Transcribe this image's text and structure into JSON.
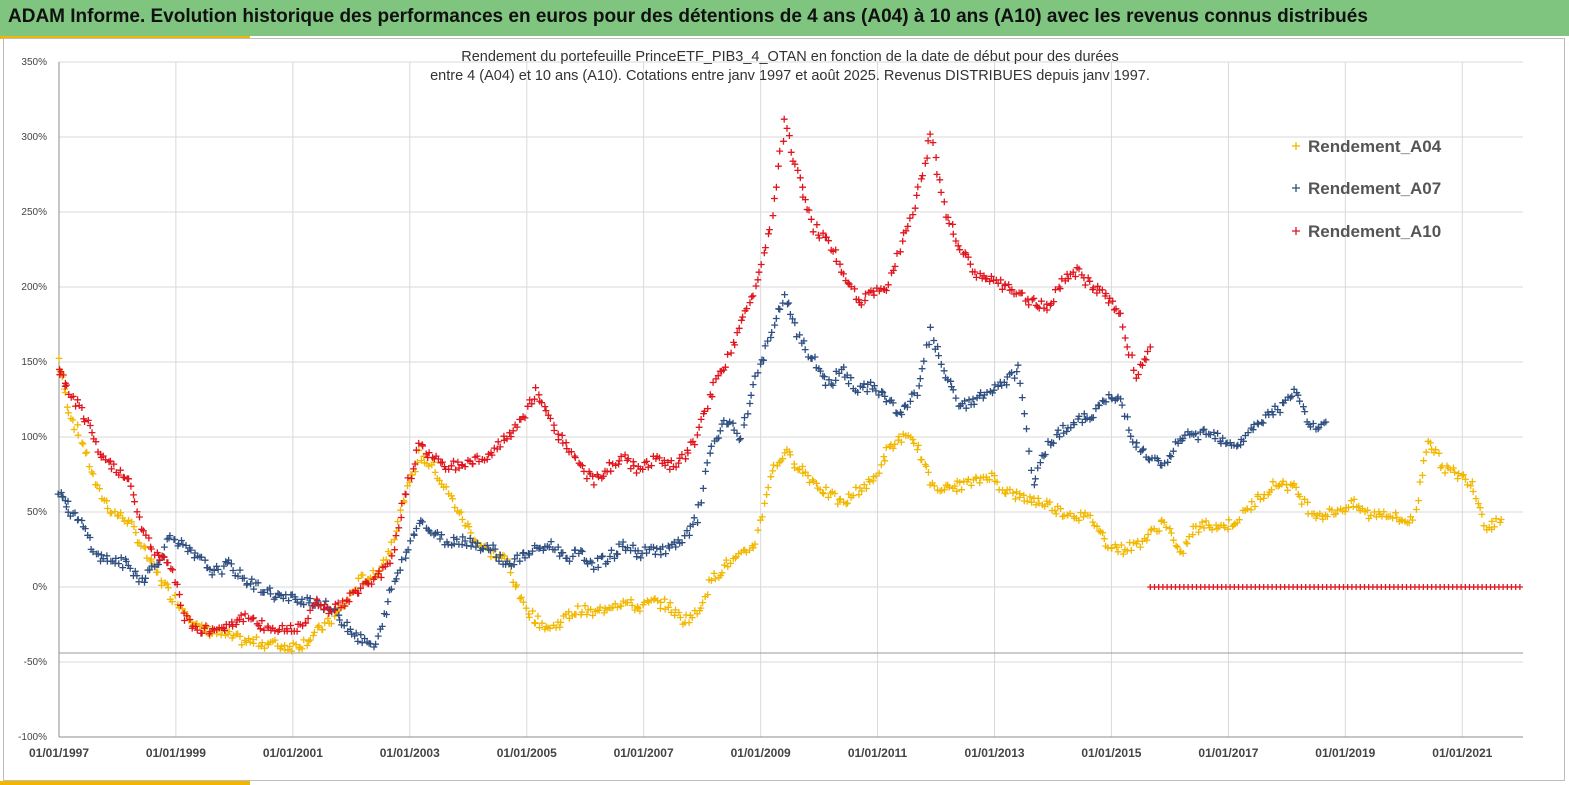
{
  "banner": {
    "title": "ADAM Informe. Evolution historique des performances en euros pour des détentions de 4 ans (A04) à 10 ans (A10) avec les revenus connus distribués"
  },
  "chart_data": {
    "type": "scatter",
    "title_line1": "Rendement du portefeuille PrinceETF_PIB3_4_OTAN  en fonction de la date de début pour des durées",
    "title_line2": "entre 4 (A04) et 10 ans (A10). Cotations entre janv 1997 et août 2025. Revenus DISTRIBUES depuis janv 1997.",
    "xlabel": "",
    "ylabel": "",
    "ylim": [
      -100,
      350
    ],
    "xlim": [
      "1997-01-01",
      "2022-01-15"
    ],
    "y_ticks": [
      "350%",
      "300%",
      "250%",
      "200%",
      "150%",
      "100%",
      "50%",
      "0%",
      "-50%",
      "-100%"
    ],
    "x_ticks": [
      "01/01/1997",
      "01/01/1999",
      "01/01/2001",
      "01/01/2003",
      "01/01/2005",
      "01/01/2007",
      "01/01/2009",
      "01/01/2011",
      "01/01/2013",
      "01/01/2015",
      "01/01/2017",
      "01/01/2019",
      "01/01/2021"
    ],
    "reference_line_y": -44,
    "grid": true,
    "legend_position": "top-right",
    "marker": "+",
    "series": [
      {
        "name": "Rendement_A04",
        "color": "#f2b800",
        "points": [
          [
            "1997-01-01",
            152
          ],
          [
            "1997-03-01",
            118
          ],
          [
            "1997-06-01",
            95
          ],
          [
            "1997-09-01",
            65
          ],
          [
            "1997-12-01",
            50
          ],
          [
            "1998-03-01",
            45
          ],
          [
            "1998-06-01",
            28
          ],
          [
            "1998-09-01",
            10
          ],
          [
            "1998-12-01",
            -5
          ],
          [
            "1999-03-01",
            -15
          ],
          [
            "1999-06-01",
            -28
          ],
          [
            "1999-09-01",
            -30
          ],
          [
            "1999-12-01",
            -33
          ],
          [
            "2000-03-01",
            -36
          ],
          [
            "2000-06-01",
            -37
          ],
          [
            "2000-09-01",
            -38
          ],
          [
            "2000-12-01",
            -40
          ],
          [
            "2001-03-01",
            -38
          ],
          [
            "2001-06-01",
            -30
          ],
          [
            "2001-09-01",
            -22
          ],
          [
            "2001-12-01",
            -10
          ],
          [
            "2002-03-01",
            5
          ],
          [
            "2002-06-01",
            8
          ],
          [
            "2002-09-01",
            25
          ],
          [
            "2002-12-01",
            60
          ],
          [
            "2003-03-01",
            88
          ],
          [
            "2003-06-01",
            80
          ],
          [
            "2003-09-01",
            62
          ],
          [
            "2003-12-01",
            45
          ],
          [
            "2004-03-01",
            30
          ],
          [
            "2004-06-01",
            22
          ],
          [
            "2004-09-01",
            18
          ],
          [
            "2004-12-01",
            -10
          ],
          [
            "2005-03-01",
            -22
          ],
          [
            "2005-06-01",
            -28
          ],
          [
            "2005-09-01",
            -20
          ],
          [
            "2005-12-01",
            -15
          ],
          [
            "2006-03-01",
            -18
          ],
          [
            "2006-06-01",
            -12
          ],
          [
            "2006-09-01",
            -10
          ],
          [
            "2006-12-01",
            -14
          ],
          [
            "2007-03-01",
            -10
          ],
          [
            "2007-06-01",
            -12
          ],
          [
            "2007-09-01",
            -22
          ],
          [
            "2007-12-01",
            -18
          ],
          [
            "2008-03-01",
            5
          ],
          [
            "2008-06-01",
            15
          ],
          [
            "2008-09-01",
            20
          ],
          [
            "2008-12-01",
            30
          ],
          [
            "2009-03-01",
            75
          ],
          [
            "2009-06-01",
            90
          ],
          [
            "2009-09-01",
            80
          ],
          [
            "2009-12-01",
            70
          ],
          [
            "2010-03-01",
            62
          ],
          [
            "2010-06-01",
            55
          ],
          [
            "2010-09-01",
            65
          ],
          [
            "2010-12-01",
            70
          ],
          [
            "2011-03-01",
            90
          ],
          [
            "2011-06-01",
            100
          ],
          [
            "2011-09-01",
            95
          ],
          [
            "2011-12-01",
            70
          ],
          [
            "2012-03-01",
            65
          ],
          [
            "2012-06-01",
            68
          ],
          [
            "2012-09-01",
            70
          ],
          [
            "2012-12-01",
            75
          ],
          [
            "2013-03-01",
            65
          ],
          [
            "2013-06-01",
            60
          ],
          [
            "2013-09-01",
            58
          ],
          [
            "2013-12-01",
            55
          ],
          [
            "2014-03-01",
            50
          ],
          [
            "2014-06-01",
            48
          ],
          [
            "2014-09-01",
            45
          ],
          [
            "2014-12-01",
            30
          ],
          [
            "2015-03-01",
            25
          ],
          [
            "2015-06-01",
            28
          ],
          [
            "2015-09-01",
            35
          ],
          [
            "2015-12-01",
            45
          ],
          [
            "2016-03-01",
            20
          ],
          [
            "2016-06-01",
            38
          ],
          [
            "2016-09-01",
            42
          ],
          [
            "2016-12-01",
            40
          ],
          [
            "2017-03-01",
            45
          ],
          [
            "2017-06-01",
            55
          ],
          [
            "2017-09-01",
            65
          ],
          [
            "2017-12-01",
            70
          ],
          [
            "2018-03-01",
            65
          ],
          [
            "2018-06-01",
            50
          ],
          [
            "2018-09-01",
            48
          ],
          [
            "2018-12-01",
            52
          ],
          [
            "2019-03-01",
            55
          ],
          [
            "2019-06-01",
            48
          ],
          [
            "2019-09-01",
            50
          ],
          [
            "2019-12-01",
            45
          ],
          [
            "2020-03-01",
            44
          ],
          [
            "2020-06-01",
            100
          ],
          [
            "2020-09-01",
            80
          ],
          [
            "2020-12-01",
            75
          ],
          [
            "2021-03-01",
            70
          ],
          [
            "2021-06-01",
            40
          ],
          [
            "2021-09-01",
            45
          ]
        ]
      },
      {
        "name": "Rendement_A07",
        "color": "#2f4f80",
        "points": [
          [
            "1997-01-01",
            65
          ],
          [
            "1997-03-01",
            52
          ],
          [
            "1997-06-01",
            40
          ],
          [
            "1997-09-01",
            20
          ],
          [
            "1997-12-01",
            18
          ],
          [
            "1998-03-01",
            15
          ],
          [
            "1998-06-01",
            5
          ],
          [
            "1998-09-01",
            15
          ],
          [
            "1998-12-01",
            35
          ],
          [
            "1999-03-01",
            25
          ],
          [
            "1999-06-01",
            18
          ],
          [
            "1999-09-01",
            10
          ],
          [
            "1999-12-01",
            15
          ],
          [
            "2000-03-01",
            5
          ],
          [
            "2000-06-01",
            0
          ],
          [
            "2000-09-01",
            -5
          ],
          [
            "2000-12-01",
            -8
          ],
          [
            "2001-03-01",
            -8
          ],
          [
            "2001-06-01",
            -10
          ],
          [
            "2001-09-01",
            -15
          ],
          [
            "2001-12-01",
            -25
          ],
          [
            "2002-03-01",
            -35
          ],
          [
            "2002-06-01",
            -40
          ],
          [
            "2002-09-01",
            -5
          ],
          [
            "2002-12-01",
            20
          ],
          [
            "2003-03-01",
            45
          ],
          [
            "2003-06-01",
            35
          ],
          [
            "2003-09-01",
            30
          ],
          [
            "2003-12-01",
            32
          ],
          [
            "2004-03-01",
            28
          ],
          [
            "2004-06-01",
            25
          ],
          [
            "2004-09-01",
            15
          ],
          [
            "2004-12-01",
            20
          ],
          [
            "2005-03-01",
            25
          ],
          [
            "2005-06-01",
            28
          ],
          [
            "2005-09-01",
            20
          ],
          [
            "2005-12-01",
            22
          ],
          [
            "2006-03-01",
            15
          ],
          [
            "2006-06-01",
            20
          ],
          [
            "2006-09-01",
            28
          ],
          [
            "2006-12-01",
            22
          ],
          [
            "2007-03-01",
            25
          ],
          [
            "2007-06-01",
            25
          ],
          [
            "2007-09-01",
            30
          ],
          [
            "2007-12-01",
            45
          ],
          [
            "2008-03-01",
            95
          ],
          [
            "2008-06-01",
            110
          ],
          [
            "2008-09-01",
            100
          ],
          [
            "2008-12-01",
            140
          ],
          [
            "2009-03-01",
            165
          ],
          [
            "2009-06-01",
            195
          ],
          [
            "2009-09-01",
            165
          ],
          [
            "2009-12-01",
            150
          ],
          [
            "2010-03-01",
            135
          ],
          [
            "2010-06-01",
            145
          ],
          [
            "2010-09-01",
            130
          ],
          [
            "2010-12-01",
            135
          ],
          [
            "2011-03-01",
            125
          ],
          [
            "2011-06-01",
            115
          ],
          [
            "2011-09-01",
            130
          ],
          [
            "2011-12-01",
            170
          ],
          [
            "2012-03-01",
            140
          ],
          [
            "2012-06-01",
            120
          ],
          [
            "2012-09-01",
            125
          ],
          [
            "2012-12-01",
            130
          ],
          [
            "2013-03-01",
            135
          ],
          [
            "2013-06-01",
            145
          ],
          [
            "2013-09-01",
            70
          ],
          [
            "2013-12-01",
            95
          ],
          [
            "2014-03-01",
            105
          ],
          [
            "2014-06-01",
            110
          ],
          [
            "2014-09-01",
            115
          ],
          [
            "2014-12-01",
            125
          ],
          [
            "2015-03-01",
            125
          ],
          [
            "2015-06-01",
            95
          ],
          [
            "2015-09-01",
            85
          ],
          [
            "2015-12-01",
            80
          ],
          [
            "2016-03-01",
            100
          ],
          [
            "2016-06-01",
            100
          ],
          [
            "2016-09-01",
            105
          ],
          [
            "2016-12-01",
            98
          ],
          [
            "2017-03-01",
            95
          ],
          [
            "2017-06-01",
            105
          ],
          [
            "2017-09-01",
            115
          ],
          [
            "2017-12-01",
            120
          ],
          [
            "2018-03-01",
            130
          ],
          [
            "2018-06-01",
            105
          ],
          [
            "2018-09-01",
            110
          ]
        ]
      },
      {
        "name": "Rendement_A10",
        "color": "#e0151d",
        "points": [
          [
            "1997-01-01",
            145
          ],
          [
            "1997-03-01",
            130
          ],
          [
            "1997-06-01",
            115
          ],
          [
            "1997-09-01",
            90
          ],
          [
            "1997-12-01",
            80
          ],
          [
            "1998-03-01",
            75
          ],
          [
            "1998-06-01",
            40
          ],
          [
            "1998-09-01",
            20
          ],
          [
            "1998-12-01",
            15
          ],
          [
            "1999-03-01",
            -20
          ],
          [
            "1999-06-01",
            -30
          ],
          [
            "1999-09-01",
            -28
          ],
          [
            "1999-12-01",
            -25
          ],
          [
            "2000-03-01",
            -20
          ],
          [
            "2000-06-01",
            -25
          ],
          [
            "2000-09-01",
            -28
          ],
          [
            "2000-12-01",
            -28
          ],
          [
            "2001-03-01",
            -25
          ],
          [
            "2001-06-01",
            -10
          ],
          [
            "2001-09-01",
            -15
          ],
          [
            "2001-12-01",
            -10
          ],
          [
            "2002-03-01",
            0
          ],
          [
            "2002-06-01",
            5
          ],
          [
            "2002-09-01",
            15
          ],
          [
            "2002-12-01",
            60
          ],
          [
            "2003-03-01",
            95
          ],
          [
            "2003-06-01",
            85
          ],
          [
            "2003-09-01",
            80
          ],
          [
            "2003-12-01",
            82
          ],
          [
            "2004-03-01",
            85
          ],
          [
            "2004-06-01",
            90
          ],
          [
            "2004-09-01",
            100
          ],
          [
            "2004-12-01",
            110
          ],
          [
            "2005-03-01",
            130
          ],
          [
            "2005-06-01",
            110
          ],
          [
            "2005-09-01",
            95
          ],
          [
            "2005-12-01",
            80
          ],
          [
            "2006-03-01",
            70
          ],
          [
            "2006-06-01",
            80
          ],
          [
            "2006-09-01",
            85
          ],
          [
            "2006-12-01",
            78
          ],
          [
            "2007-03-01",
            85
          ],
          [
            "2007-06-01",
            80
          ],
          [
            "2007-09-01",
            85
          ],
          [
            "2007-12-01",
            100
          ],
          [
            "2008-03-01",
            130
          ],
          [
            "2008-06-01",
            150
          ],
          [
            "2008-09-01",
            175
          ],
          [
            "2008-12-01",
            200
          ],
          [
            "2009-03-01",
            240
          ],
          [
            "2009-06-01",
            310
          ],
          [
            "2009-09-01",
            270
          ],
          [
            "2009-12-01",
            240
          ],
          [
            "2010-03-01",
            230
          ],
          [
            "2010-06-01",
            210
          ],
          [
            "2010-09-01",
            190
          ],
          [
            "2010-12-01",
            195
          ],
          [
            "2011-03-01",
            200
          ],
          [
            "2011-06-01",
            230
          ],
          [
            "2011-09-01",
            260
          ],
          [
            "2011-12-01",
            300
          ],
          [
            "2012-03-01",
            250
          ],
          [
            "2012-06-01",
            225
          ],
          [
            "2012-09-01",
            210
          ],
          [
            "2012-12-01",
            205
          ],
          [
            "2013-03-01",
            200
          ],
          [
            "2013-06-01",
            195
          ],
          [
            "2013-09-01",
            190
          ],
          [
            "2013-12-01",
            185
          ],
          [
            "2014-03-01",
            205
          ],
          [
            "2014-06-01",
            210
          ],
          [
            "2014-09-01",
            200
          ],
          [
            "2014-12-01",
            195
          ],
          [
            "2015-03-01",
            180
          ],
          [
            "2015-06-01",
            140
          ],
          [
            "2015-09-01",
            160
          ]
        ]
      },
      {
        "name": "",
        "color": "#e0151d",
        "flat_segment": {
          "from": "2015-09-01",
          "to": "2022-01-10",
          "y": 0
        }
      }
    ]
  }
}
